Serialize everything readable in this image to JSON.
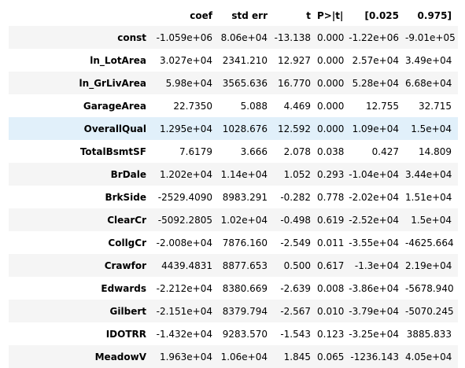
{
  "table": {
    "columns": [
      "",
      "coef",
      "std err",
      "t",
      "P>|t|",
      "[0.025",
      "0.975]"
    ],
    "highlighted_row": "OverallQual",
    "rows": [
      {
        "name": "const",
        "coef": "-1.059e+06",
        "std_err": "8.06e+04",
        "t": "-13.138",
        "p": "0.000",
        "ci_low": "-1.22e+06",
        "ci_high": "-9.01e+05"
      },
      {
        "name": "ln_LotArea",
        "coef": "3.027e+04",
        "std_err": "2341.210",
        "t": "12.927",
        "p": "0.000",
        "ci_low": "2.57e+04",
        "ci_high": "3.49e+04"
      },
      {
        "name": "ln_GrLivArea",
        "coef": "5.98e+04",
        "std_err": "3565.636",
        "t": "16.770",
        "p": "0.000",
        "ci_low": "5.28e+04",
        "ci_high": "6.68e+04"
      },
      {
        "name": "GarageArea",
        "coef": "22.7350",
        "std_err": "5.088",
        "t": "4.469",
        "p": "0.000",
        "ci_low": "12.755",
        "ci_high": "32.715"
      },
      {
        "name": "OverallQual",
        "coef": "1.295e+04",
        "std_err": "1028.676",
        "t": "12.592",
        "p": "0.000",
        "ci_low": "1.09e+04",
        "ci_high": "1.5e+04"
      },
      {
        "name": "TotalBsmtSF",
        "coef": "7.6179",
        "std_err": "3.666",
        "t": "2.078",
        "p": "0.038",
        "ci_low": "0.427",
        "ci_high": "14.809"
      },
      {
        "name": "BrDale",
        "coef": "1.202e+04",
        "std_err": "1.14e+04",
        "t": "1.052",
        "p": "0.293",
        "ci_low": "-1.04e+04",
        "ci_high": "3.44e+04"
      },
      {
        "name": "BrkSide",
        "coef": "-2529.4090",
        "std_err": "8983.291",
        "t": "-0.282",
        "p": "0.778",
        "ci_low": "-2.02e+04",
        "ci_high": "1.51e+04"
      },
      {
        "name": "ClearCr",
        "coef": "-5092.2805",
        "std_err": "1.02e+04",
        "t": "-0.498",
        "p": "0.619",
        "ci_low": "-2.52e+04",
        "ci_high": "1.5e+04"
      },
      {
        "name": "CollgCr",
        "coef": "-2.008e+04",
        "std_err": "7876.160",
        "t": "-2.549",
        "p": "0.011",
        "ci_low": "-3.55e+04",
        "ci_high": "-4625.664"
      },
      {
        "name": "Crawfor",
        "coef": "4439.4831",
        "std_err": "8877.653",
        "t": "0.500",
        "p": "0.617",
        "ci_low": "-1.3e+04",
        "ci_high": "2.19e+04"
      },
      {
        "name": "Edwards",
        "coef": "-2.212e+04",
        "std_err": "8380.669",
        "t": "-2.639",
        "p": "0.008",
        "ci_low": "-3.86e+04",
        "ci_high": "-5678.940"
      },
      {
        "name": "Gilbert",
        "coef": "-2.151e+04",
        "std_err": "8379.794",
        "t": "-2.567",
        "p": "0.010",
        "ci_low": "-3.79e+04",
        "ci_high": "-5070.245"
      },
      {
        "name": "IDOTRR",
        "coef": "-1.432e+04",
        "std_err": "9283.570",
        "t": "-1.543",
        "p": "0.123",
        "ci_low": "-3.25e+04",
        "ci_high": "3885.833"
      },
      {
        "name": "MeadowV",
        "coef": "1.963e+04",
        "std_err": "1.06e+04",
        "t": "1.845",
        "p": "0.065",
        "ci_low": "-1236.143",
        "ci_high": "4.05e+04"
      }
    ]
  }
}
